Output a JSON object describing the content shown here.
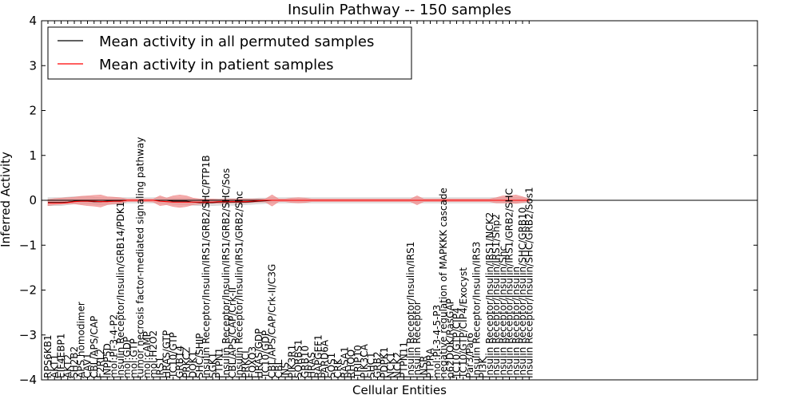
{
  "chart_data": {
    "type": "line",
    "title": "Insulin Pathway -- 150 samples",
    "xlabel": "Cellular Entities",
    "ylabel": "Inferred Activity",
    "ylim": [
      -4,
      4
    ],
    "yticks": [
      -4,
      -3,
      -2,
      -1,
      0,
      1,
      2,
      3,
      4
    ],
    "ytick_labels": [
      "−4",
      "−3",
      "−2",
      "−1",
      "0",
      "1",
      "2",
      "3",
      "4"
    ],
    "categories": [
      "RPS6KB1",
      "AKT1",
      "EIF4EBP1",
      "AKT2",
      "SH2B2",
      "APS homodimer",
      "CAV1",
      "CBL/APS/CAP",
      "F2RL2",
      "INPP5D",
      "mol:PI-3-4-P2",
      "Insulin Receptor/Insulin/GRB14/PDK1",
      "mol:GDP",
      "mol:GTP",
      "tumor necrosis factor-mediated signaling pathway",
      "mol:cAMP",
      "mol:H2O2",
      "IRS1",
      "HRAS/GTP",
      "TC10/GTP",
      "GRB14",
      "PRKCZ",
      "DOK1",
      "SHC/SHIP",
      "Insulin Receptor/Insulin/IRS1/GRB2/SHC/PTP1B",
      "SGK1",
      "PTPN1",
      "Insulin Receptor/Insulin/IRS1/GRB2/SHC/Sos",
      "CBL/APS/CAP/Crk-II",
      "Insulin Receptor/Insulin/IRS1/GRB2/Shc",
      "PRKCI",
      "FOXO3",
      "HRAS/GDP",
      "TC10/GDP",
      "CBL/APS/CAP/Crk-II/C3G",
      "CBL",
      "INS",
      "PIK3R1",
      "SORBS1",
      "GRB10",
      "HRAS",
      "RAPGEF1",
      "PARD6A",
      "SOS1",
      "CRK",
      "RASA1",
      "RHOQ",
      "TRIP10",
      "PIK3CA",
      "SHC1",
      "GRB2",
      "PDPK1",
      "NCK1",
      "NCK2",
      "PTPN11",
      "Insulin Receptor/Insulin/IRS1",
      "Insulin Receptor",
      "INSR",
      "PTPRA",
      "mol:PI-3-4-5-P3",
      "negative regulation of MAPKKK cascade",
      "p62DOK/RasGAP",
      "TC10/GTP/CIP4",
      "TC10/GTP/CIP4/Exocyst",
      "Par3/Par6",
      "Insulin Receptor/Insulin/IRS3",
      "PI3K",
      "Insulin Receptor/Insulin/IRS1/NCK2",
      "Insulin Receptor/Insulin/IRS1/Shp2",
      "Insulin Receptor/Insulin/Shc",
      "Insulin Receptor/Insulin/IRS1/GRB2/SHC",
      "Insulin Receptor/Insulin",
      "Insulin Receptor/Insulin/SHC/GRB10",
      "Insulin Receptor/Insulin/SHC/GRB2/Sos1"
    ],
    "series": [
      {
        "name": "Mean activity in all permuted samples",
        "color": "#000000",
        "band_color": "#bdbdbd",
        "mean": [
          -0.05,
          -0.05,
          -0.05,
          -0.04,
          -0.02,
          -0.02,
          -0.02,
          -0.03,
          -0.03,
          -0.02,
          -0.02,
          -0.02,
          0,
          0,
          0,
          0,
          0,
          0,
          0,
          -0.02,
          -0.02,
          -0.02,
          -0.04,
          -0.05,
          -0.05,
          -0.05,
          -0.04,
          -0.04,
          -0.04,
          -0.04,
          -0.04,
          -0.03,
          -0.02,
          -0.01,
          0,
          0,
          0,
          0,
          0,
          0,
          0,
          0,
          0,
          0,
          0,
          0,
          0,
          0,
          0,
          0,
          0,
          0,
          0,
          0,
          0,
          0,
          0,
          0,
          0,
          0,
          0,
          0,
          0,
          0,
          0,
          0,
          0,
          0,
          0,
          0,
          0,
          0,
          0,
          0
        ],
        "lower": [
          -0.12,
          -0.12,
          -0.12,
          -0.1,
          -0.08,
          -0.08,
          -0.08,
          -0.09,
          -0.1,
          -0.09,
          -0.09,
          -0.08,
          -0.06,
          -0.06,
          -0.06,
          -0.06,
          -0.06,
          -0.07,
          -0.08,
          -0.09,
          -0.1,
          -0.1,
          -0.11,
          -0.12,
          -0.12,
          -0.12,
          -0.11,
          -0.11,
          -0.11,
          -0.1,
          -0.1,
          -0.09,
          -0.08,
          -0.07,
          -0.06,
          -0.06,
          -0.06,
          -0.06,
          -0.06,
          -0.06,
          -0.06,
          -0.06,
          -0.06,
          -0.06,
          -0.06,
          -0.06,
          -0.06,
          -0.06,
          -0.06,
          -0.06,
          -0.06,
          -0.06,
          -0.06,
          -0.06,
          -0.06,
          -0.06,
          -0.06,
          -0.06,
          -0.06,
          -0.06,
          -0.06,
          -0.06,
          -0.06,
          -0.06,
          -0.06,
          -0.06,
          -0.06,
          -0.06,
          -0.06,
          -0.06,
          -0.06,
          -0.06,
          -0.06,
          -0.06
        ],
        "upper": [
          0.06,
          0.06,
          0.06,
          0.07,
          0.08,
          0.08,
          0.08,
          0.07,
          0.06,
          0.06,
          0.06,
          0.06,
          0.06,
          0.06,
          0.06,
          0.06,
          0.06,
          0.06,
          0.06,
          0.05,
          0.05,
          0.05,
          0.04,
          0.03,
          0.03,
          0.03,
          0.03,
          0.04,
          0.04,
          0.04,
          0.04,
          0.04,
          0.05,
          0.05,
          0.06,
          0.06,
          0.06,
          0.06,
          0.06,
          0.06,
          0.06,
          0.06,
          0.06,
          0.06,
          0.06,
          0.06,
          0.06,
          0.06,
          0.06,
          0.06,
          0.06,
          0.06,
          0.06,
          0.06,
          0.06,
          0.06,
          0.06,
          0.06,
          0.06,
          0.06,
          0.06,
          0.06,
          0.06,
          0.06,
          0.06,
          0.06,
          0.06,
          0.06,
          0.06,
          0.06,
          0.06,
          0.06,
          0.06,
          0.06
        ]
      },
      {
        "name": "Mean activity in patient samples",
        "color": "#ff0000",
        "band_color": "#f08080",
        "mean": [
          -0.06,
          -0.06,
          -0.06,
          -0.05,
          -0.03,
          -0.02,
          -0.02,
          -0.02,
          -0.03,
          -0.03,
          -0.02,
          -0.02,
          0,
          0,
          0,
          0,
          0,
          -0.02,
          -0.03,
          -0.04,
          -0.04,
          -0.04,
          -0.04,
          -0.04,
          -0.04,
          -0.04,
          -0.03,
          -0.03,
          -0.03,
          -0.03,
          -0.03,
          -0.02,
          -0.01,
          0,
          0,
          0,
          0,
          0,
          0,
          0,
          0,
          0,
          0,
          0,
          0,
          0,
          0,
          0,
          0,
          0,
          0,
          0,
          0,
          0,
          0,
          0,
          0,
          0,
          0,
          0,
          0,
          0,
          0,
          0,
          0,
          0,
          0,
          0,
          0,
          0,
          0,
          0,
          0,
          0
        ],
        "lower": [
          -0.12,
          -0.1,
          -0.09,
          -0.08,
          -0.08,
          -0.1,
          -0.12,
          -0.13,
          -0.15,
          -0.1,
          -0.08,
          -0.07,
          -0.03,
          -0.03,
          -0.03,
          -0.03,
          -0.04,
          -0.12,
          -0.1,
          -0.14,
          -0.16,
          -0.14,
          -0.1,
          -0.09,
          -0.08,
          -0.07,
          -0.07,
          -0.07,
          -0.06,
          -0.06,
          -0.06,
          -0.05,
          -0.04,
          -0.04,
          -0.13,
          -0.03,
          -0.03,
          -0.05,
          -0.06,
          -0.05,
          -0.03,
          -0.03,
          -0.03,
          -0.03,
          -0.03,
          -0.03,
          -0.03,
          -0.03,
          -0.03,
          -0.03,
          -0.03,
          -0.03,
          -0.03,
          -0.03,
          -0.03,
          -0.03,
          -0.1,
          -0.03,
          -0.03,
          -0.03,
          -0.03,
          -0.03,
          -0.03,
          -0.03,
          -0.03,
          -0.03,
          -0.03,
          -0.03,
          -0.06,
          -0.06,
          -0.06,
          -0.07,
          -0.05,
          -0.03
        ],
        "upper": [
          0.02,
          0.04,
          0.05,
          0.06,
          0.07,
          0.09,
          0.1,
          0.11,
          0.12,
          0.08,
          0.07,
          0.06,
          0.03,
          0.03,
          0.03,
          0.03,
          0.03,
          0.1,
          0.05,
          0.1,
          0.12,
          0.1,
          0.05,
          0.03,
          0.03,
          0.03,
          0.02,
          0.03,
          0.03,
          0.03,
          0.03,
          0.03,
          0.03,
          0.03,
          0.12,
          0.03,
          0.03,
          0.05,
          0.06,
          0.05,
          0.03,
          0.03,
          0.03,
          0.03,
          0.03,
          0.03,
          0.03,
          0.03,
          0.03,
          0.03,
          0.03,
          0.03,
          0.03,
          0.03,
          0.03,
          0.03,
          0.1,
          0.03,
          0.03,
          0.03,
          0.03,
          0.03,
          0.03,
          0.03,
          0.03,
          0.03,
          0.03,
          0.03,
          0.06,
          0.1,
          0.1,
          0.12,
          0.08,
          0.03
        ]
      }
    ],
    "legend_position": "top-left",
    "grid": false
  }
}
